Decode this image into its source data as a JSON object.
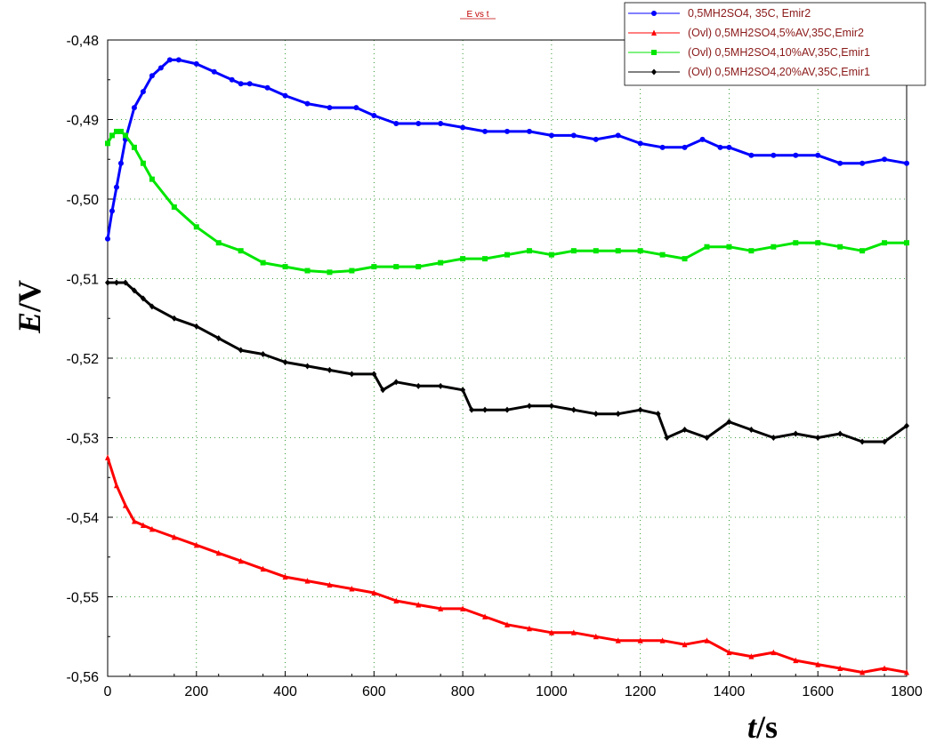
{
  "chart_data": {
    "type": "line",
    "title": "E vs t",
    "xlabel": {
      "italic": "t",
      "unit": "/s"
    },
    "ylabel": {
      "italic": "E",
      "unit": "/V"
    },
    "xlim": [
      0,
      1800
    ],
    "ylim": [
      -0.56,
      -0.48
    ],
    "x_ticks": [
      0,
      200,
      400,
      600,
      800,
      1000,
      1200,
      1400,
      1600,
      1800
    ],
    "x_tick_labels": [
      "0",
      "200",
      "400",
      "600",
      "800",
      "1000",
      "1200",
      "1400",
      "1600",
      "1800"
    ],
    "y_ticks": [
      -0.48,
      -0.49,
      -0.5,
      -0.51,
      -0.52,
      -0.53,
      -0.54,
      -0.55,
      -0.56
    ],
    "y_tick_labels": [
      "-0,48",
      "-0,49",
      "-0,50",
      "-0,51",
      "-0,52",
      "-0,53",
      "-0,54",
      "-0,55",
      "-0,56"
    ],
    "grid": true,
    "legend_position": "top-right",
    "series": [
      {
        "name": "0,5MH2SO4, 35C, Emir2",
        "color": "#0000ff",
        "marker": "circle",
        "x": [
          0,
          10,
          20,
          30,
          40,
          60,
          80,
          100,
          120,
          140,
          160,
          200,
          240,
          280,
          300,
          320,
          360,
          400,
          450,
          500,
          560,
          600,
          650,
          700,
          750,
          800,
          850,
          900,
          950,
          1000,
          1050,
          1100,
          1150,
          1200,
          1250,
          1300,
          1340,
          1380,
          1400,
          1450,
          1500,
          1550,
          1600,
          1650,
          1700,
          1750,
          1800
        ],
        "y": [
          -0.505,
          -0.5015,
          -0.4985,
          -0.4955,
          -0.4925,
          -0.4885,
          -0.4865,
          -0.4845,
          -0.4835,
          -0.4825,
          -0.4825,
          -0.483,
          -0.484,
          -0.485,
          -0.4855,
          -0.4855,
          -0.486,
          -0.487,
          -0.488,
          -0.4885,
          -0.4885,
          -0.4895,
          -0.4905,
          -0.4905,
          -0.4905,
          -0.491,
          -0.4915,
          -0.4915,
          -0.4915,
          -0.492,
          -0.492,
          -0.4925,
          -0.492,
          -0.493,
          -0.4935,
          -0.4935,
          -0.4925,
          -0.4935,
          -0.4935,
          -0.4945,
          -0.4945,
          -0.4945,
          -0.4945,
          -0.4955,
          -0.4955,
          -0.495,
          -0.4955
        ]
      },
      {
        "name": "(Ovl) 0,5MH2SO4,5%AV,35C,Emir2",
        "color": "#ff0000",
        "marker": "triangle",
        "x": [
          0,
          20,
          40,
          60,
          80,
          100,
          150,
          200,
          250,
          300,
          350,
          400,
          450,
          500,
          550,
          600,
          650,
          700,
          750,
          800,
          850,
          900,
          950,
          1000,
          1050,
          1100,
          1150,
          1200,
          1250,
          1300,
          1350,
          1400,
          1450,
          1500,
          1550,
          1600,
          1650,
          1700,
          1750,
          1800
        ],
        "y": [
          -0.5325,
          -0.536,
          -0.5385,
          -0.5405,
          -0.541,
          -0.5415,
          -0.5425,
          -0.5435,
          -0.5445,
          -0.5455,
          -0.5465,
          -0.5475,
          -0.548,
          -0.5485,
          -0.549,
          -0.5495,
          -0.5505,
          -0.551,
          -0.5515,
          -0.5515,
          -0.5525,
          -0.5535,
          -0.554,
          -0.5545,
          -0.5545,
          -0.555,
          -0.5555,
          -0.5555,
          -0.5555,
          -0.556,
          -0.5555,
          -0.557,
          -0.5575,
          -0.557,
          -0.558,
          -0.5585,
          -0.559,
          -0.5595,
          -0.559,
          -0.5595
        ]
      },
      {
        "name": "(Ovl) 0,5MH2SO4,10%AV,35C,Emir1",
        "color": "#00e600",
        "marker": "square",
        "x": [
          0,
          10,
          20,
          30,
          40,
          60,
          80,
          100,
          150,
          200,
          250,
          300,
          350,
          400,
          450,
          500,
          550,
          600,
          650,
          700,
          750,
          800,
          850,
          900,
          950,
          1000,
          1050,
          1100,
          1150,
          1200,
          1250,
          1300,
          1350,
          1400,
          1450,
          1500,
          1550,
          1600,
          1650,
          1700,
          1750,
          1800
        ],
        "y": [
          -0.493,
          -0.492,
          -0.4915,
          -0.4915,
          -0.492,
          -0.4935,
          -0.4955,
          -0.4975,
          -0.501,
          -0.5035,
          -0.5055,
          -0.5065,
          -0.508,
          -0.5085,
          -0.509,
          -0.5092,
          -0.509,
          -0.5085,
          -0.5085,
          -0.5085,
          -0.508,
          -0.5075,
          -0.5075,
          -0.507,
          -0.5065,
          -0.507,
          -0.5065,
          -0.5065,
          -0.5065,
          -0.5065,
          -0.507,
          -0.5075,
          -0.506,
          -0.506,
          -0.5065,
          -0.506,
          -0.5055,
          -0.5055,
          -0.506,
          -0.5065,
          -0.5055,
          -0.5055
        ]
      },
      {
        "name": "(Ovl) 0,5MH2SO4,20%AV,35C,Emir1",
        "color": "#000000",
        "marker": "diamond",
        "x": [
          0,
          20,
          40,
          60,
          80,
          100,
          150,
          200,
          250,
          300,
          350,
          400,
          450,
          500,
          550,
          600,
          620,
          650,
          700,
          750,
          800,
          820,
          850,
          900,
          950,
          1000,
          1050,
          1100,
          1150,
          1200,
          1240,
          1260,
          1300,
          1350,
          1400,
          1450,
          1500,
          1550,
          1600,
          1650,
          1700,
          1750,
          1800
        ],
        "y": [
          -0.5105,
          -0.5105,
          -0.5105,
          -0.5115,
          -0.5125,
          -0.5135,
          -0.515,
          -0.516,
          -0.5175,
          -0.519,
          -0.5195,
          -0.5205,
          -0.521,
          -0.5215,
          -0.522,
          -0.522,
          -0.524,
          -0.523,
          -0.5235,
          -0.5235,
          -0.524,
          -0.5265,
          -0.5265,
          -0.5265,
          -0.526,
          -0.526,
          -0.5265,
          -0.527,
          -0.527,
          -0.5265,
          -0.527,
          -0.53,
          -0.529,
          -0.53,
          -0.528,
          -0.529,
          -0.53,
          -0.5295,
          -0.53,
          -0.5295,
          -0.5305,
          -0.5305,
          -0.5285
        ]
      }
    ]
  }
}
